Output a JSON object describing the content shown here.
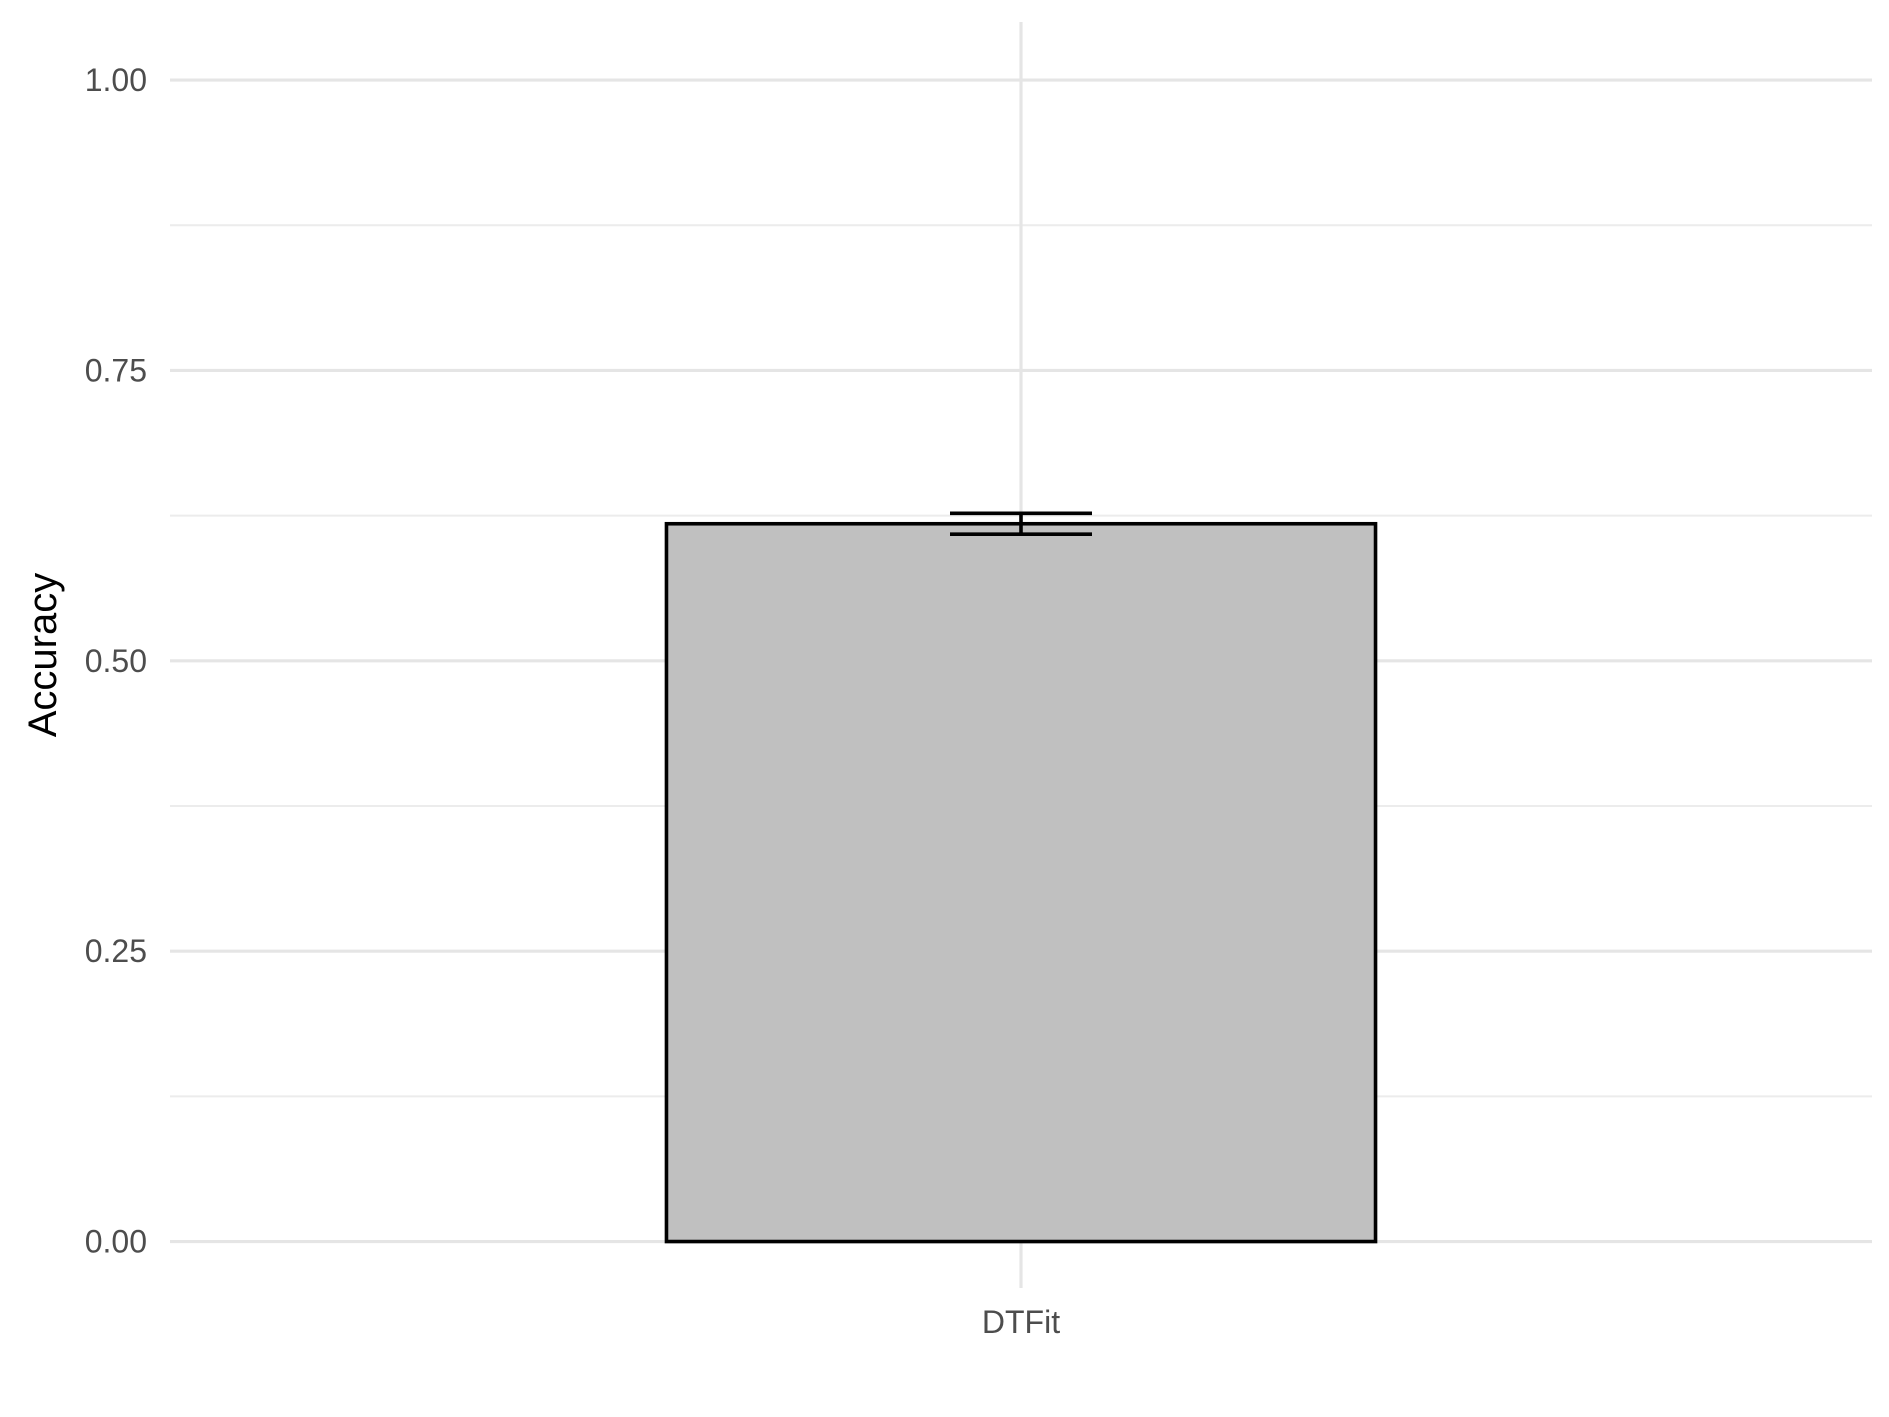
{
  "chart_data": {
    "type": "bar",
    "categories": [
      "DTFit"
    ],
    "values": [
      0.618
    ],
    "error": [
      {
        "lower": 0.609,
        "upper": 0.627
      }
    ],
    "xlabel": "",
    "ylabel": "Accuracy",
    "ylim": [
      -0.04,
      1.05
    ],
    "yticks": [
      0.0,
      0.25,
      0.5,
      0.75,
      1.0
    ],
    "ytick_labels": [
      "0.00",
      "0.25",
      "0.50",
      "0.75",
      "1.00"
    ],
    "grid": true,
    "legend": "none",
    "colors": {
      "bar_fill": "#c0c0c0",
      "bar_stroke": "#000000",
      "errorbar": "#000000",
      "grid": "#e5e5e5"
    }
  }
}
